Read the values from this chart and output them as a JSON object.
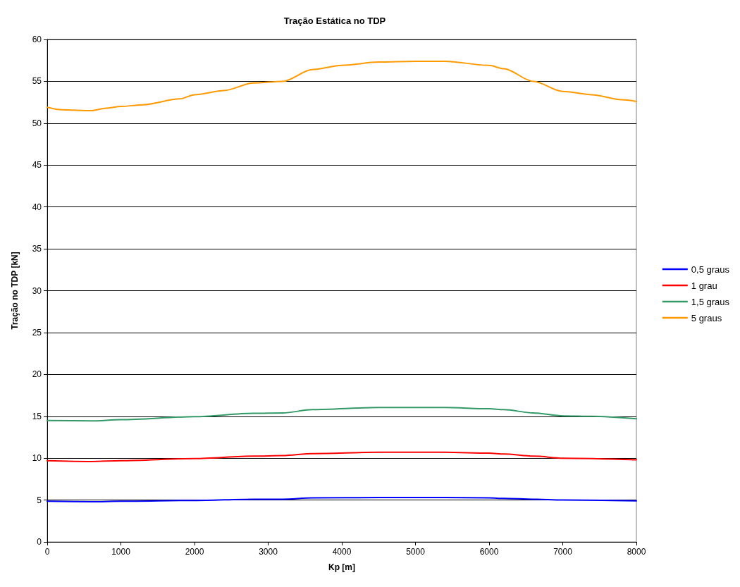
{
  "chart_data": {
    "type": "line",
    "title": "Tração Estática no TDP",
    "xlabel": "Kp [m]",
    "ylabel": "Tração no TDP [kN]",
    "xlim": [
      0,
      8000
    ],
    "xticks": [
      0,
      1000,
      2000,
      3000,
      4000,
      5000,
      6000,
      7000,
      8000
    ],
    "ylim": [
      0,
      60
    ],
    "yticks": [
      0,
      5,
      10,
      15,
      20,
      25,
      30,
      35,
      40,
      45,
      50,
      55,
      60
    ],
    "grid": "y",
    "legend": "right",
    "marker": "none",
    "line_style": "solid",
    "series": [
      {
        "name": "0,5 graus",
        "color": "#0000ff",
        "x": [
          0,
          600,
          1000,
          2000,
          2800,
          3200,
          3600,
          4500,
          5400,
          6000,
          6200,
          6600,
          7000,
          8000
        ],
        "values": [
          4.85,
          4.8,
          4.85,
          4.95,
          5.1,
          5.1,
          5.25,
          5.3,
          5.3,
          5.25,
          5.2,
          5.1,
          5.0,
          4.9
        ]
      },
      {
        "name": "1 grau",
        "color": "#ff0000",
        "x": [
          0,
          600,
          1000,
          2000,
          2800,
          3200,
          3600,
          4500,
          5400,
          6000,
          6200,
          6600,
          7000,
          8000
        ],
        "values": [
          9.7,
          9.6,
          9.7,
          9.95,
          10.25,
          10.3,
          10.55,
          10.7,
          10.7,
          10.6,
          10.5,
          10.25,
          10.0,
          9.8
        ]
      },
      {
        "name": "1,5 graus",
        "color": "#339966",
        "x": [
          0,
          600,
          1000,
          2000,
          2800,
          3200,
          3600,
          4500,
          5400,
          6000,
          6200,
          6600,
          7000,
          7400,
          8000
        ],
        "values": [
          14.5,
          14.45,
          14.6,
          14.95,
          15.35,
          15.4,
          15.8,
          16.05,
          16.05,
          15.9,
          15.8,
          15.4,
          15.05,
          15.0,
          14.7
        ]
      },
      {
        "name": "5 graus",
        "color": "#ff9900",
        "x": [
          0,
          200,
          600,
          800,
          1000,
          1300,
          1800,
          2000,
          2400,
          2800,
          3200,
          3600,
          4000,
          4500,
          5000,
          5400,
          6000,
          6200,
          6600,
          7000,
          7400,
          7800,
          8000
        ],
        "values": [
          51.9,
          51.6,
          51.5,
          51.8,
          52.0,
          52.2,
          52.9,
          53.4,
          53.9,
          54.8,
          55.0,
          56.4,
          56.9,
          57.3,
          57.4,
          57.4,
          56.9,
          56.5,
          55.0,
          53.8,
          53.4,
          52.8,
          52.6
        ]
      }
    ]
  }
}
